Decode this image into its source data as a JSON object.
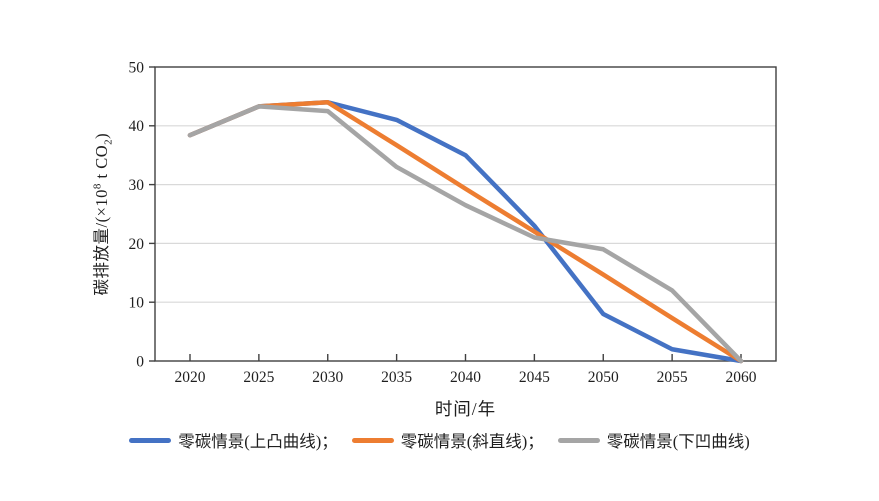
{
  "chart_data": {
    "type": "line",
    "title": "",
    "x": [
      "2020",
      "2025",
      "2030",
      "2035",
      "2040",
      "2045",
      "2050",
      "2055",
      "2060"
    ],
    "xlabel": "时间/年",
    "ylabel": "碳排放量/(×10⁸ t CO₂)",
    "ylabel_parts": {
      "pre": "碳排放量/(×10",
      "sup": "8",
      "mid": " t CO",
      "sub": "2",
      "post": ")"
    },
    "ylim": [
      0,
      50
    ],
    "yticks": [
      0,
      10,
      20,
      30,
      40,
      50
    ],
    "grid": "horizontal-light",
    "legend_position": "bottom",
    "series": [
      {
        "name": "零碳情景(上凸曲线)",
        "legend_label": "零碳情景(上凸曲线)；",
        "color": "#4472C4",
        "values": [
          38.4,
          43.3,
          44,
          41,
          35,
          23,
          8,
          2,
          0
        ]
      },
      {
        "name": "零碳情景(斜直线)",
        "legend_label": "零碳情景(斜直线)；",
        "color": "#ED7D31",
        "values": [
          38.4,
          43.3,
          44,
          36.7,
          29.3,
          22,
          14.7,
          7.3,
          0
        ]
      },
      {
        "name": "零碳情景(下凹曲线)",
        "legend_label": "零碳情景(下凹曲线)",
        "color": "#A5A5A5",
        "values": [
          38.4,
          43.3,
          42.5,
          33,
          26.5,
          21,
          19,
          12,
          0
        ]
      }
    ],
    "colors": {
      "gridline": "#d9d9d9",
      "axis": "#404040",
      "text": "#1f1f1f",
      "background": "#ffffff"
    }
  }
}
